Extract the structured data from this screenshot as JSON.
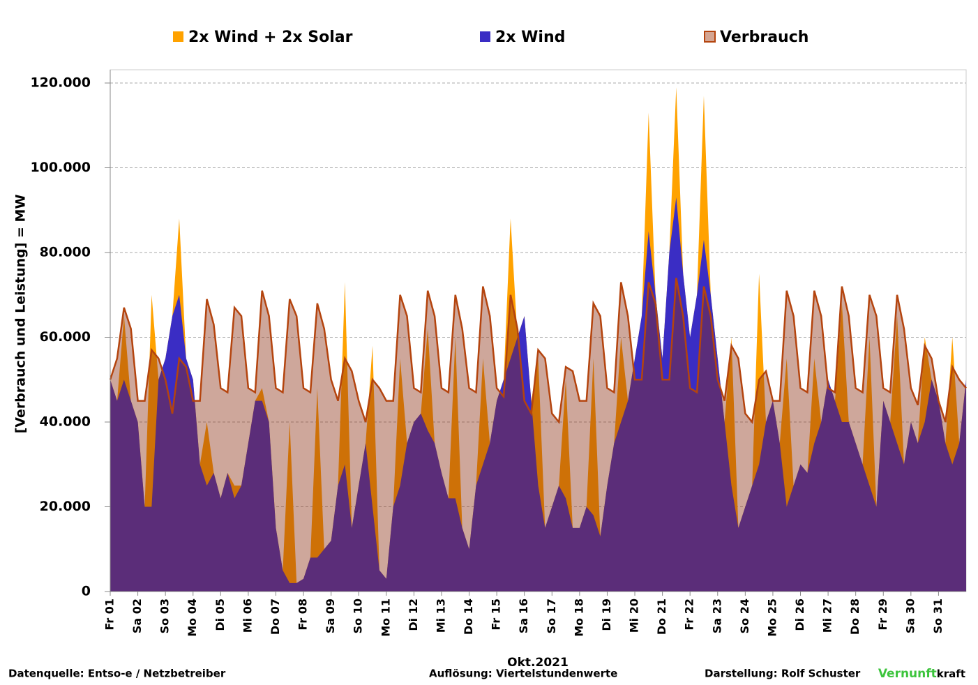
{
  "chart_data": {
    "type": "area",
    "y_label": "[Verbrauch und Leistung] =  MW",
    "x_label": "Okt.2021",
    "source": "Datenquelle: Entso-e  / Netzbetreiber",
    "resolution": "Auflösung: Viertelstundenwerte",
    "author": "Darstellung:  Rolf Schuster",
    "brand_1": "Vernunft",
    "brand_2": "kraft",
    "xlim": [
      0,
      31
    ],
    "ylim": [
      0,
      120000
    ],
    "grid": true,
    "legend": "top",
    "yticks": [
      0,
      {
        "value": 20000,
        "label": "20.000"
      },
      {
        "value": 40000,
        "label": "40.000"
      },
      {
        "value": 60000,
        "label": "60.000"
      },
      {
        "value": 80000,
        "label": "80.000"
      },
      {
        "value": 100000,
        "label": "100.000"
      },
      {
        "value": 120000,
        "label": "120.000"
      }
    ],
    "xticks": [
      {
        "value": 0,
        "label": "Fr 01"
      },
      {
        "value": 1,
        "label": "Sa 02"
      },
      {
        "value": 2,
        "label": "So 03"
      },
      {
        "value": 3,
        "label": "Mo 04"
      },
      {
        "value": 4,
        "label": "Di 05"
      },
      {
        "value": 5,
        "label": "Mi 06"
      },
      {
        "value": 6,
        "label": "Do 07"
      },
      {
        "value": 7,
        "label": "Fr 08"
      },
      {
        "value": 8,
        "label": "Sa 09"
      },
      {
        "value": 9,
        "label": "So 10"
      },
      {
        "value": 10,
        "label": "Mo 11"
      },
      {
        "value": 11,
        "label": "Di 12"
      },
      {
        "value": 12,
        "label": "Mi 13"
      },
      {
        "value": 13,
        "label": "Do 14"
      },
      {
        "value": 14,
        "label": "Fr 15"
      },
      {
        "value": 15,
        "label": "Sa 16"
      },
      {
        "value": 16,
        "label": "So 17"
      },
      {
        "value": 17,
        "label": "Mo 18"
      },
      {
        "value": 18,
        "label": "Di 19"
      },
      {
        "value": 19,
        "label": "Mi 20"
      },
      {
        "value": 20,
        "label": "Do 21"
      },
      {
        "value": 21,
        "label": "Fr 22"
      },
      {
        "value": 22,
        "label": "Sa 23"
      },
      {
        "value": 23,
        "label": "So 24"
      },
      {
        "value": 24,
        "label": "Mo 25"
      },
      {
        "value": 25,
        "label": "Di 26"
      },
      {
        "value": 26,
        "label": "Mi 27"
      },
      {
        "value": 27,
        "label": "Do 28"
      },
      {
        "value": 28,
        "label": "Fr 29"
      },
      {
        "value": 29,
        "label": "Sa 30"
      },
      {
        "value": 30,
        "label": "So 31"
      }
    ],
    "x": [
      0,
      0.25,
      0.5,
      0.75,
      1,
      1.25,
      1.5,
      1.75,
      2,
      2.25,
      2.5,
      2.75,
      3,
      3.25,
      3.5,
      3.75,
      4,
      4.25,
      4.5,
      4.75,
      5,
      5.25,
      5.5,
      5.75,
      6,
      6.25,
      6.5,
      6.75,
      7,
      7.25,
      7.5,
      7.75,
      8,
      8.25,
      8.5,
      8.75,
      9,
      9.25,
      9.5,
      9.75,
      10,
      10.25,
      10.5,
      10.75,
      11,
      11.25,
      11.5,
      11.75,
      12,
      12.25,
      12.5,
      12.75,
      13,
      13.25,
      13.5,
      13.75,
      14,
      14.25,
      14.5,
      14.75,
      15,
      15.25,
      15.5,
      15.75,
      16,
      16.25,
      16.5,
      16.75,
      17,
      17.25,
      17.5,
      17.75,
      18,
      18.25,
      18.5,
      18.75,
      19,
      19.25,
      19.5,
      19.75,
      20,
      20.25,
      20.5,
      20.75,
      21,
      21.25,
      21.5,
      21.75,
      22,
      22.25,
      22.5,
      22.75,
      23,
      23.25,
      23.5,
      23.75,
      24,
      24.25,
      24.5,
      24.75,
      25,
      25.25,
      25.5,
      25.75,
      26,
      26.25,
      26.5,
      26.75,
      27,
      27.25,
      27.5,
      27.75,
      28,
      28.25,
      28.5,
      28.75,
      29,
      29.25,
      29.5,
      29.75,
      30,
      30.25,
      30.5,
      30.75,
      31
    ],
    "series": [
      {
        "name": "2x Wind + 2x Solar",
        "color": "#ffa200",
        "values": [
          50000,
          45000,
          65000,
          45000,
          40000,
          20000,
          70000,
          50000,
          55000,
          65000,
          88000,
          55000,
          50000,
          30000,
          40000,
          28000,
          22000,
          28000,
          25000,
          25000,
          35000,
          45000,
          48000,
          40000,
          15000,
          5000,
          40000,
          2000,
          3000,
          8000,
          48000,
          10000,
          12000,
          25000,
          73000,
          15000,
          25000,
          35000,
          58000,
          5000,
          3000,
          20000,
          55000,
          35000,
          40000,
          42000,
          62000,
          35000,
          28000,
          22000,
          60000,
          15000,
          10000,
          25000,
          55000,
          35000,
          45000,
          50000,
          88000,
          60000,
          65000,
          45000,
          55000,
          15000,
          20000,
          25000,
          50000,
          15000,
          15000,
          20000,
          55000,
          13000,
          25000,
          35000,
          60000,
          45000,
          55000,
          65000,
          113000,
          70000,
          55000,
          80000,
          119000,
          75000,
          60000,
          70000,
          117000,
          70000,
          55000,
          40000,
          60000,
          15000,
          20000,
          25000,
          75000,
          40000,
          45000,
          35000,
          55000,
          25000,
          30000,
          28000,
          55000,
          40000,
          50000,
          45000,
          68000,
          40000,
          35000,
          30000,
          60000,
          20000,
          45000,
          40000,
          65000,
          30000,
          40000,
          35000,
          60000,
          50000,
          45000,
          35000,
          60000,
          35000,
          50000
        ]
      },
      {
        "name": "2x Wind",
        "color": "#3a2dc4",
        "values": [
          50000,
          45000,
          50000,
          45000,
          40000,
          20000,
          20000,
          50000,
          55000,
          65000,
          70000,
          55000,
          50000,
          30000,
          25000,
          28000,
          22000,
          28000,
          22000,
          25000,
          35000,
          45000,
          45000,
          40000,
          15000,
          5000,
          2000,
          2000,
          3000,
          8000,
          8000,
          10000,
          12000,
          25000,
          30000,
          15000,
          25000,
          35000,
          20000,
          5000,
          3000,
          20000,
          25000,
          35000,
          40000,
          42000,
          38000,
          35000,
          28000,
          22000,
          22000,
          15000,
          10000,
          25000,
          30000,
          35000,
          45000,
          50000,
          55000,
          60000,
          65000,
          45000,
          25000,
          15000,
          20000,
          25000,
          22000,
          15000,
          15000,
          20000,
          18000,
          13000,
          25000,
          35000,
          40000,
          45000,
          55000,
          65000,
          85000,
          70000,
          55000,
          80000,
          93000,
          75000,
          60000,
          70000,
          83000,
          70000,
          55000,
          40000,
          25000,
          15000,
          20000,
          25000,
          30000,
          40000,
          45000,
          35000,
          20000,
          25000,
          30000,
          28000,
          35000,
          40000,
          50000,
          45000,
          40000,
          40000,
          35000,
          30000,
          25000,
          20000,
          45000,
          40000,
          35000,
          30000,
          40000,
          35000,
          40000,
          50000,
          45000,
          35000,
          30000,
          35000,
          50000
        ]
      },
      {
        "name": "Verbrauch",
        "color": "#b4440e",
        "values": [
          50000,
          55000,
          67000,
          62000,
          45000,
          45000,
          57000,
          55000,
          50000,
          42000,
          55000,
          53000,
          45000,
          45000,
          69000,
          63000,
          48000,
          47000,
          67000,
          65000,
          48000,
          47000,
          71000,
          65000,
          48000,
          47000,
          69000,
          65000,
          48000,
          47000,
          68000,
          62000,
          50000,
          45000,
          55000,
          52000,
          45000,
          40000,
          50000,
          48000,
          45000,
          45000,
          70000,
          65000,
          48000,
          47000,
          71000,
          65000,
          48000,
          47000,
          70000,
          62000,
          48000,
          47000,
          72000,
          65000,
          48000,
          46000,
          70000,
          62000,
          45000,
          42000,
          57000,
          55000,
          42000,
          40000,
          53000,
          52000,
          45000,
          45000,
          68000,
          65000,
          48000,
          47000,
          73000,
          65000,
          50000,
          50000,
          73000,
          68000,
          50000,
          50000,
          74000,
          65000,
          48000,
          47000,
          72000,
          65000,
          50000,
          45000,
          58000,
          55000,
          42000,
          40000,
          50000,
          52000,
          45000,
          45000,
          71000,
          65000,
          48000,
          47000,
          71000,
          65000,
          48000,
          47000,
          72000,
          65000,
          48000,
          47000,
          70000,
          65000,
          48000,
          47000,
          70000,
          62000,
          48000,
          44000,
          58000,
          55000,
          45000,
          40000,
          53000,
          50000,
          48000
        ]
      }
    ]
  }
}
